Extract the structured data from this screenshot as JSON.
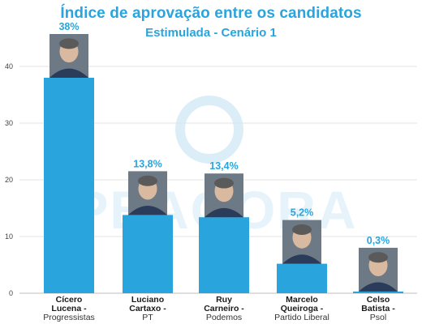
{
  "chart_data": {
    "type": "bar",
    "title": "Índice de aprovação entre os candidatos",
    "subtitle": "Estimulada - Cenário 1",
    "categories": [
      {
        "name_lines": [
          "Cícero",
          "Lucena -"
        ],
        "party": "Progressistas"
      },
      {
        "name_lines": [
          "Luciano",
          "Cartaxo -"
        ],
        "party": "PT"
      },
      {
        "name_lines": [
          "Ruy",
          "Carneiro -"
        ],
        "party": "Podemos"
      },
      {
        "name_lines": [
          "Marcelo",
          "Queiroga -"
        ],
        "party": "Partido Liberal"
      },
      {
        "name_lines": [
          "Celso",
          "Batista -"
        ],
        "party": "Psol"
      }
    ],
    "values": [
      38,
      13.8,
      13.4,
      5.2,
      0.3
    ],
    "data_labels": [
      "38%",
      "13,8%",
      "13,4%",
      "5,2%",
      "0,3%"
    ],
    "ylim": [
      0,
      45
    ],
    "yticks": [
      0,
      10,
      20,
      30,
      40
    ],
    "grid": true,
    "bar_color": "#2aa4dc",
    "watermark": "PBAGORA",
    "photos": [
      "candidate-photo",
      "candidate-photo",
      "candidate-photo",
      "candidate-photo",
      "candidate-photo"
    ]
  }
}
